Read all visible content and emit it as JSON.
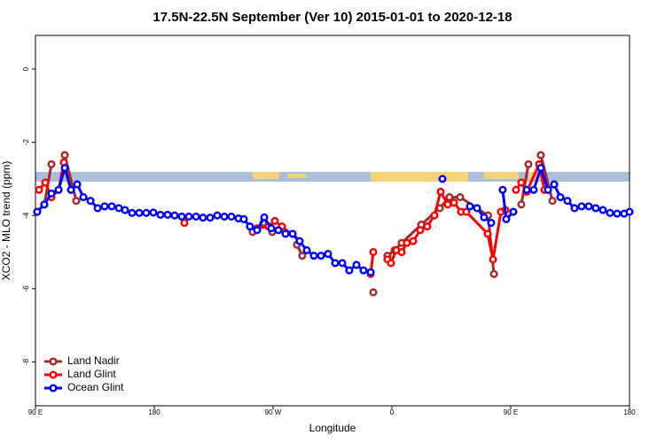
{
  "chart_data": {
    "type": "line",
    "title": "17.5N-22.5N September (Ver 10)   2015-01-01 to 2020-12-18",
    "x_label": "Longitude",
    "y_label": "XCO2 - MLO trend (ppm)",
    "xlim": [
      90,
      540
    ],
    "xticks": [
      {
        "value": 90,
        "label": "90 E"
      },
      {
        "value": 180,
        "label": "180"
      },
      {
        "value": 270,
        "label": "90 W"
      },
      {
        "value": 360,
        "label": "0"
      },
      {
        "value": 450,
        "label": "90 E"
      },
      {
        "value": 540,
        "label": "180"
      }
    ],
    "ylim": [
      -9.2,
      0.92
    ],
    "yticks": [
      0,
      -2,
      -4,
      -6,
      -8
    ],
    "legend": "bottom-left",
    "series": [
      {
        "name": "Land Nadir",
        "color": "#a52a2a",
        "x": [
          96.7,
          102.1,
          null,
          112.2,
          120.9,
          null,
          254.5,
          262.6,
          269.3,
          null,
          288.1,
          292.1,
          null,
          345.9,
          null,
          356.6,
          362.0,
          367.4,
          382.2,
          396.3,
          403.6,
          411.7,
          432.9,
          437.3,
          null,
          458.0,
          463.4,
          null,
          472.8,
          481.6
        ],
        "values": [
          -3.7,
          -2.6,
          null,
          -2.35,
          -3.6,
          null,
          -4.45,
          -4.2,
          -4.45,
          null,
          -4.8,
          -5.1,
          null,
          -6.1,
          null,
          -5.1,
          -4.95,
          -4.75,
          -4.25,
          -3.8,
          -3.5,
          -3.5,
          -4.0,
          -5.6,
          null,
          -3.7,
          -2.6,
          null,
          -2.35,
          -3.6
        ]
      },
      {
        "name": "Land Glint",
        "color": "#ff0000",
        "x": [
          92.7,
          97.4,
          102.1,
          107.5,
          111.5,
          116.9,
          null,
          202.8,
          null,
          257.9,
          266.6,
          271.3,
          276.7,
          290.1,
          null,
          343.9,
          345.9,
          null,
          356.6,
          359.3,
          363.3,
          367.4,
          371.4,
          376.1,
          381.5,
          386.8,
          392.2,
          396.9,
          402.3,
          407.0,
          412.4,
          416.4,
          432.5,
          436.6,
          442.6,
          446.0,
          null,
          454.0,
          458.0,
          462.1,
          471.5,
          475.5
        ],
        "values": [
          -3.3,
          -3.1,
          -3.5,
          -3.3,
          -2.55,
          -3.3,
          null,
          -4.2,
          null,
          -4.35,
          -4.3,
          -4.15,
          -4.3,
          -4.7,
          null,
          -5.6,
          -5.0,
          null,
          -5.2,
          -5.3,
          -4.95,
          -5.0,
          -4.75,
          -4.7,
          -4.4,
          -4.3,
          -4.0,
          -3.35,
          -3.7,
          -3.65,
          -3.9,
          -3.9,
          -4.5,
          -5.2,
          -3.9,
          -3.85,
          null,
          -3.3,
          -3.1,
          -3.35,
          -2.6,
          -3.3
        ]
      },
      {
        "name": "Ocean Glint",
        "color": "#0000ff",
        "x": [
          91.3,
          96.7,
          102.1,
          107.5,
          112.2,
          116.9,
          121.6,
          126.3,
          131.7,
          137.1,
          142.4,
          147.8,
          153.2,
          157.8,
          163.2,
          168.6,
          173.9,
          179.3,
          184.7,
          190.1,
          195.4,
          200.8,
          206.2,
          211.6,
          216.9,
          222.3,
          227.7,
          233.1,
          238.4,
          243.8,
          247.8,
          252.5,
          257.9,
          263.3,
          268.6,
          274.0,
          279.4,
          284.8,
          290.1,
          295.5,
          300.9,
          306.3,
          311.6,
          317.0,
          322.4,
          327.7,
          333.1,
          338.5,
          343.9,
          null,
          398.3,
          null,
          419.1,
          424.5,
          429.8,
          435.2,
          null,
          443.9,
          446.6,
          452.0,
          null,
          462.1,
          467.4,
          472.8,
          478.2,
          482.9,
          487.6,
          493.0,
          498.3,
          503.7,
          509.1,
          514.4,
          519.8,
          525.2,
          530.6,
          535.9,
          540
        ],
        "values": [
          -3.9,
          -3.7,
          -3.4,
          -3.3,
          -2.7,
          -3.3,
          -3.15,
          -3.5,
          -3.6,
          -3.8,
          -3.75,
          -3.75,
          -3.8,
          -3.85,
          -3.93,
          -3.93,
          -3.93,
          -3.92,
          -3.98,
          -3.98,
          -4.0,
          -4.03,
          -4.03,
          -4.03,
          -4.06,
          -4.06,
          -4.0,
          -4.03,
          -4.03,
          -4.08,
          -4.1,
          -4.3,
          -4.4,
          -4.05,
          -4.35,
          -4.4,
          -4.5,
          -4.5,
          -4.7,
          -4.95,
          -5.1,
          -5.1,
          -5.05,
          -5.3,
          -5.3,
          -5.5,
          -5.35,
          -5.5,
          -5.55,
          null,
          -3.0,
          null,
          -3.75,
          -3.8,
          -4.05,
          -4.2,
          null,
          -3.3,
          -4.1,
          -3.9,
          null,
          -3.3,
          -3.3,
          -2.7,
          -3.3,
          -3.15,
          -3.5,
          -3.6,
          -3.8,
          -3.75,
          -3.75,
          -3.8,
          -3.85,
          -3.93,
          -3.95,
          -3.95,
          -3.9
        ]
      }
    ]
  }
}
